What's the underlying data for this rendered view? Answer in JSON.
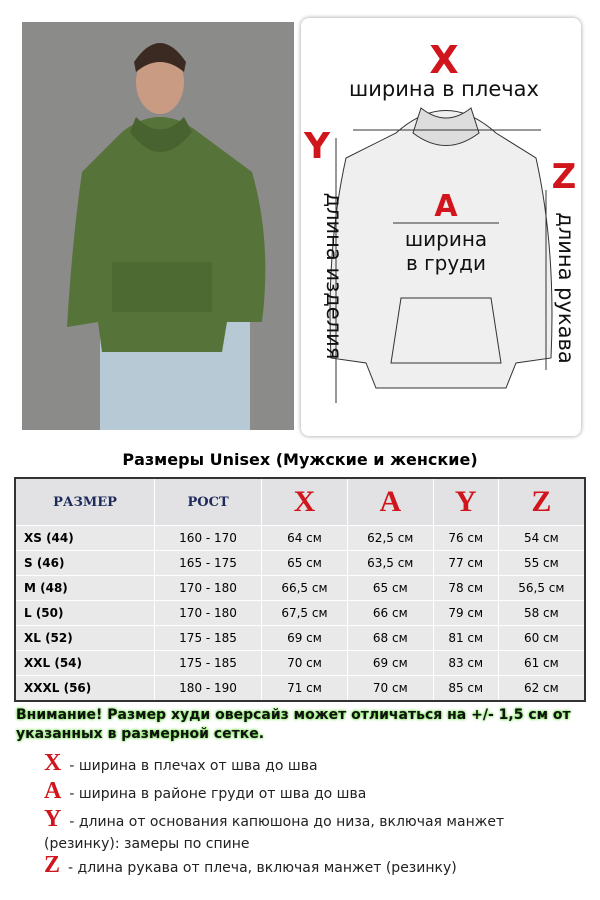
{
  "diagram": {
    "x_letter": "X",
    "x_label": "ширина в плечах",
    "y_letter": "Y",
    "y_label": "длина изделия",
    "a_letter": "A",
    "a_label_1": "ширина",
    "a_label_2": "в груди",
    "z_letter": "Z",
    "z_label": "длина рукава"
  },
  "title": "Размеры Unisex (Мужские и женские)",
  "table": {
    "header": [
      "РАЗМЕР",
      "РОСТ",
      "X",
      "A",
      "Y",
      "Z"
    ],
    "rows": [
      [
        "XS (44)",
        "160 - 170",
        "64 см",
        "62,5 см",
        "76 см",
        "54 см"
      ],
      [
        "S (46)",
        "165 - 175",
        "65 см",
        "63,5 см",
        "77 см",
        "55 см"
      ],
      [
        "M (48)",
        "170 - 180",
        "66,5 см",
        "65 см",
        "78 см",
        "56,5 см"
      ],
      [
        "L (50)",
        "170 - 180",
        "67,5 см",
        "66 см",
        "79 см",
        "58 см"
      ],
      [
        "XL (52)",
        "175 - 185",
        "69 см",
        "68 см",
        "81 см",
        "60 см"
      ],
      [
        "XXL (54)",
        "175 - 185",
        "70 см",
        "69 см",
        "83 см",
        "61 см"
      ],
      [
        "XXXL (56)",
        "180 - 190",
        "71 см",
        "70 см",
        "85 см",
        "62 см"
      ]
    ]
  },
  "warning": "Внимание! Размер худи оверсайз может отличаться на +/- 1,5 см от указанных в размерной сетке.",
  "legend": [
    {
      "letter": "X",
      "text": "- ширина в плечах от шва до шва"
    },
    {
      "letter": "A",
      "text": "- ширина в районе груди от шва до шва"
    },
    {
      "letter": "Y",
      "text": "- длина от основания капюшона до низа, включая манжет (резинку): замеры по спине"
    },
    {
      "letter": "Z",
      "text": "- длина рукава от плеча, включая манжет (резинку)"
    }
  ]
}
